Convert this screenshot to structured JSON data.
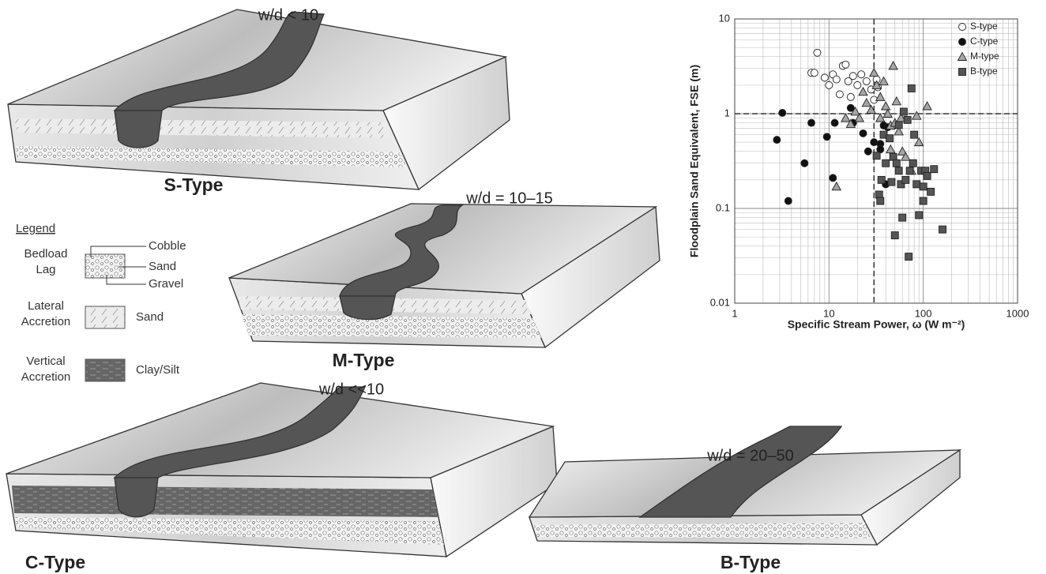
{
  "diagrams": [
    {
      "ratio": "w/d < 10",
      "label": "S-Type"
    },
    {
      "ratio": "w/d = 10–15",
      "label": "M-Type"
    },
    {
      "ratio": "w/d <<10",
      "label": "C-Type"
    },
    {
      "ratio": "w/d = 20–50",
      "label": "B-Type"
    }
  ],
  "legend": {
    "title": "Legend",
    "rows": [
      {
        "label": [
          "Bedload",
          "Lag"
        ],
        "items": [
          "Cobble",
          "Sand",
          "Gravel"
        ]
      },
      {
        "label": [
          "Lateral",
          "Accretion"
        ],
        "items": [
          "Sand"
        ]
      },
      {
        "label": [
          "Vertical",
          "Accretion"
        ],
        "items": [
          "Clay/Silt"
        ]
      }
    ]
  },
  "chart_data": {
    "type": "scatter",
    "x_label": "Specific Stream Power, ω (W m⁻²)",
    "y_label": "Floodplain Sand Equivalent, FSE (m)",
    "log_x": true,
    "log_y": true,
    "grid": true,
    "minor_grid": true,
    "legend_position": "upper-right",
    "xlim": [
      1,
      1000
    ],
    "xticks": [
      1,
      10,
      100,
      1000
    ],
    "ylim": [
      0.01,
      10
    ],
    "yticks": [
      0.01,
      0.1,
      1,
      10
    ],
    "reference_lines": {
      "x": [
        30
      ],
      "y": [
        1
      ]
    },
    "series": [
      {
        "name": "S-type",
        "marker": "circle",
        "color": "#ffffff",
        "x": [
          6.5,
          7,
          7.5,
          9,
          10,
          11,
          12,
          13,
          14,
          15,
          16,
          17,
          18,
          20,
          22,
          25,
          28,
          30,
          32,
          33
        ],
        "values": [
          2.7,
          2.7,
          4.4,
          2.4,
          2,
          2.6,
          2.3,
          1.6,
          3.2,
          3.3,
          2.2,
          1.5,
          2.5,
          2,
          2.6,
          2.2,
          1.8,
          1.4,
          2.3,
          1.9
        ]
      },
      {
        "name": "C-type",
        "marker": "circle",
        "color": "#111111",
        "x": [
          2.8,
          3.2,
          3.7,
          5.5,
          6.5,
          9.5,
          11,
          11.5,
          17,
          18,
          23,
          26,
          30,
          35,
          38,
          40,
          42,
          35
        ],
        "values": [
          0.53,
          1.02,
          0.12,
          0.3,
          0.8,
          0.57,
          0.21,
          0.8,
          1.15,
          0.8,
          0.62,
          0.4,
          0.5,
          0.48,
          0.75,
          0.18,
          0.72,
          0.42
        ]
      },
      {
        "name": "M-type",
        "marker": "triangle",
        "color": "#a6a6a6",
        "x": [
          12,
          15,
          17,
          19,
          21,
          23,
          25,
          28,
          30,
          32,
          35,
          38,
          40,
          42,
          45,
          48,
          50,
          52,
          55,
          58,
          60,
          65,
          75,
          85,
          90,
          110,
          45,
          35
        ],
        "values": [
          0.17,
          0.9,
          0.78,
          1.05,
          0.9,
          1.7,
          1.3,
          1.1,
          2.7,
          2.0,
          1.5,
          2.2,
          1.2,
          1.0,
          0.75,
          3.2,
          0.8,
          1.35,
          0.65,
          0.9,
          0.4,
          0.35,
          0.25,
          0.95,
          0.5,
          1.2,
          0.42,
          0.9
        ]
      },
      {
        "name": "B-type",
        "marker": "square",
        "color": "#555555",
        "x": [
          32,
          34,
          35,
          36,
          38,
          40,
          44,
          46,
          48,
          50,
          52,
          55,
          58,
          60,
          62,
          65,
          68,
          70,
          72,
          75,
          78,
          80,
          85,
          90,
          95,
          100,
          105,
          110,
          120,
          130,
          160,
          55,
          100
        ],
        "values": [
          0.36,
          0.14,
          0.12,
          0.2,
          0.6,
          0.3,
          0.55,
          0.19,
          0.35,
          0.052,
          0.3,
          0.25,
          0.18,
          0.08,
          1.05,
          0.2,
          0.86,
          0.031,
          0.25,
          1.85,
          0.3,
          0.6,
          0.18,
          0.085,
          0.25,
          0.12,
          0.25,
          0.22,
          0.15,
          0.26,
          0.06,
          0.76,
          0.17
        ]
      }
    ]
  }
}
